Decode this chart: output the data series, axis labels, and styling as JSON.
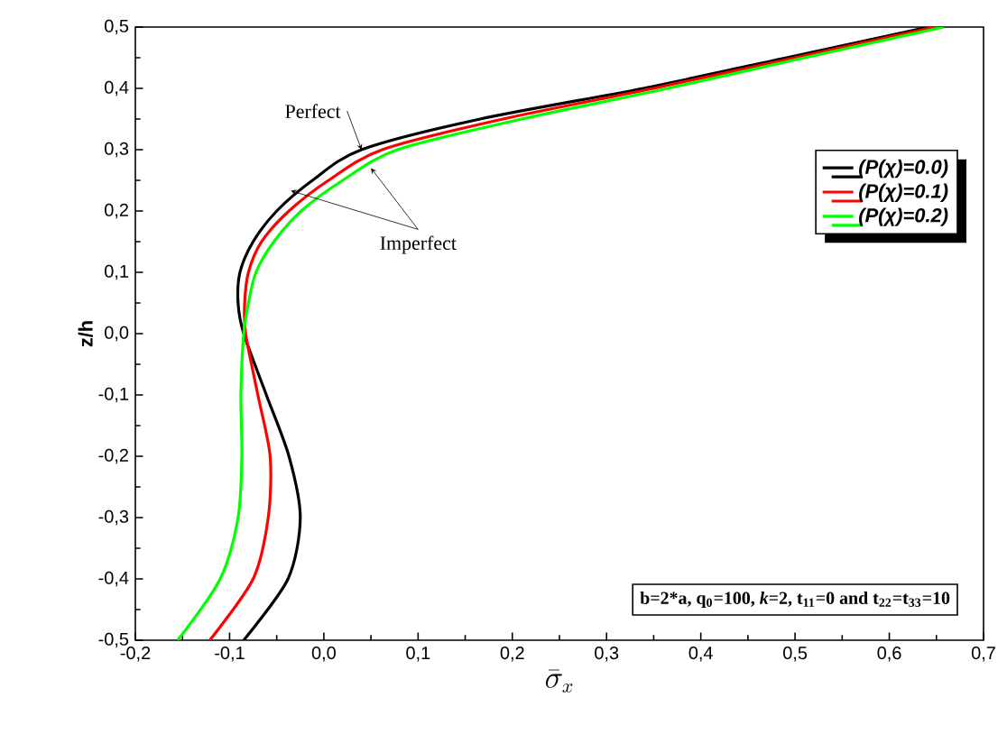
{
  "chart_data": {
    "type": "line",
    "xlabel": "\\bar{\\sigma}_{x}",
    "ylabel": "z/h",
    "series": [
      {
        "name": "(P(χ)=0.0)",
        "color": "#000000",
        "x": [
          -0.085,
          -0.038,
          -0.025,
          -0.037,
          -0.061,
          -0.085,
          -0.091,
          -0.089,
          -0.075,
          -0.05,
          -0.012,
          0.04,
          0.166,
          0.339,
          0.491,
          0.642
        ],
        "values": [
          -0.5,
          -0.4,
          -0.3,
          -0.2,
          -0.1,
          0.0,
          0.05,
          0.1,
          0.15,
          0.2,
          0.25,
          0.3,
          0.35,
          0.4,
          0.45,
          0.5
        ]
      },
      {
        "name": "(P(χ)=0.1)",
        "color": "#ff0000",
        "x": [
          -0.121,
          -0.075,
          -0.059,
          -0.057,
          -0.07,
          -0.083,
          -0.084,
          -0.08,
          -0.066,
          -0.037,
          0.005,
          0.062,
          0.19,
          0.35,
          0.5,
          0.648
        ],
        "values": [
          -0.5,
          -0.4,
          -0.3,
          -0.2,
          -0.1,
          0.0,
          0.05,
          0.1,
          0.15,
          0.2,
          0.25,
          0.3,
          0.35,
          0.4,
          0.45,
          0.5
        ]
      },
      {
        "name": "(P(χ)=0.2)",
        "color": "#00ff00",
        "x": [
          -0.155,
          -0.11,
          -0.091,
          -0.087,
          -0.088,
          -0.085,
          -0.08,
          -0.072,
          -0.053,
          -0.024,
          0.02,
          0.078,
          0.21,
          0.365,
          0.51,
          0.658
        ],
        "values": [
          -0.5,
          -0.4,
          -0.3,
          -0.2,
          -0.1,
          0.0,
          0.05,
          0.1,
          0.15,
          0.2,
          0.25,
          0.3,
          0.35,
          0.4,
          0.45,
          0.5
        ]
      }
    ],
    "xlim": [
      -0.2,
      0.7
    ],
    "ylim": [
      -0.5,
      0.5
    ],
    "xticks": [
      {
        "value": -0.2,
        "label": "-0,2"
      },
      {
        "value": -0.1,
        "label": "-0,1"
      },
      {
        "value": 0.0,
        "label": "0,0"
      },
      {
        "value": 0.1,
        "label": "0,1"
      },
      {
        "value": 0.2,
        "label": "0,2"
      },
      {
        "value": 0.3,
        "label": "0,3"
      },
      {
        "value": 0.4,
        "label": "0,4"
      },
      {
        "value": 0.5,
        "label": "0,5"
      },
      {
        "value": 0.6,
        "label": "0,6"
      },
      {
        "value": 0.7,
        "label": "0,7"
      }
    ],
    "yticks": [
      {
        "value": -0.5,
        "label": "-0,5"
      },
      {
        "value": -0.4,
        "label": "-0,4"
      },
      {
        "value": -0.3,
        "label": "-0,3"
      },
      {
        "value": -0.2,
        "label": "-0,2"
      },
      {
        "value": -0.1,
        "label": "-0,1"
      },
      {
        "value": 0.0,
        "label": "0,0"
      },
      {
        "value": 0.1,
        "label": "0,1"
      },
      {
        "value": 0.2,
        "label": "0,2"
      },
      {
        "value": 0.3,
        "label": "0,3"
      },
      {
        "value": 0.4,
        "label": "0,4"
      },
      {
        "value": 0.5,
        "label": "0,5"
      }
    ],
    "legend": "right",
    "annotations": [
      {
        "text": "Perfect",
        "x": 0.04,
        "y": 0.3
      },
      {
        "text": "Imperfect",
        "x": 0.05,
        "y": 0.27
      },
      "b=2*a, q$_{0}$=100, *k*=2, t$_{11}$=0 and t$_{22}$=t$_{33}$=10"
    ]
  }
}
